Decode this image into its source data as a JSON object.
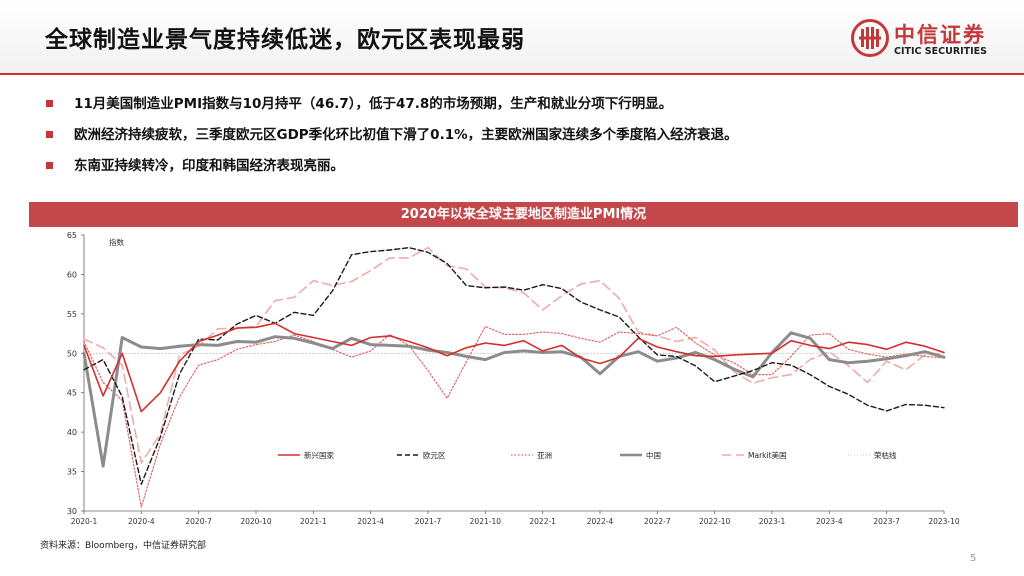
{
  "header": {
    "title": "全球制造业景气度持续低迷，欧元区表现最弱",
    "logo_cn": "中信证券",
    "logo_en": "CITIC SECURITIES"
  },
  "bullets": [
    "11月美国制造业PMI指数与10月持平（46.7），低于47.8的市场预期，生产和就业分项下行明显。",
    "欧洲经济持续疲软，三季度欧元区GDP季化环比初值下滑了0.1%，主要欧洲国家连续多个季度陷入经济衰退。",
    "东南亚持续转冷，印度和韩国经济表现亮丽。"
  ],
  "chart_banner": "2020年以来全球主要地区制造业PMI情况",
  "source": "资料来源：Bloomberg，中信证券研究部",
  "page_number": "5",
  "colors": {
    "brand_red": "#c4383a",
    "banner_red": "#c4484a",
    "emerging": "#d32f2f",
    "eurozone": "#1a1a1a",
    "asia": "#e06666",
    "china": "#8c8c8c",
    "us": "#f2aaaa",
    "boomline": "#bbbbbb"
  },
  "chart_data": {
    "type": "line",
    "title": "2020年以来全球主要地区制造业PMI情况",
    "ylabel": "指数",
    "ylim": [
      30,
      65
    ],
    "yticks": [
      30,
      35,
      40,
      45,
      50,
      55,
      60,
      65
    ],
    "x_range": [
      0,
      45
    ],
    "xticks": [
      {
        "i": 0,
        "label": "2020-1"
      },
      {
        "i": 3,
        "label": "2020-4"
      },
      {
        "i": 6,
        "label": "2020-7"
      },
      {
        "i": 9,
        "label": "2020-10"
      },
      {
        "i": 12,
        "label": "2021-1"
      },
      {
        "i": 15,
        "label": "2021-4"
      },
      {
        "i": 18,
        "label": "2021-7"
      },
      {
        "i": 21,
        "label": "2021-10"
      },
      {
        "i": 24,
        "label": "2022-1"
      },
      {
        "i": 27,
        "label": "2022-4"
      },
      {
        "i": 30,
        "label": "2022-7"
      },
      {
        "i": 33,
        "label": "2022-10"
      },
      {
        "i": 36,
        "label": "2023-1"
      },
      {
        "i": 39,
        "label": "2023-4"
      },
      {
        "i": 42,
        "label": "2023-7"
      },
      {
        "i": 45,
        "label": "2023-10"
      }
    ],
    "grid": false,
    "legend_position": "bottom",
    "series": [
      {
        "name": "新兴国家",
        "key": "emerging",
        "style": "solid",
        "width": 1.6,
        "values": [
          51,
          44.6,
          50,
          42.6,
          45,
          49,
          51.5,
          52.3,
          53.2,
          53.3,
          53.8,
          52.5,
          52,
          51.5,
          51,
          52,
          52.2,
          51.5,
          50.7,
          49.7,
          50.7,
          51.3,
          51,
          51.6,
          50.3,
          51,
          49.4,
          48.7,
          49.5,
          51.9,
          50.8,
          50.2,
          49.7,
          49.6,
          49.8,
          49.9,
          50,
          51.6,
          51,
          50.6,
          51.4,
          51.1,
          50.5,
          51.4,
          50.9,
          50.1
        ]
      },
      {
        "name": "欧元区",
        "key": "eurozone",
        "style": "dash",
        "width": 1.4,
        "values": [
          47.9,
          49.2,
          44.5,
          33.4,
          39.4,
          47.4,
          51.8,
          51.7,
          53.7,
          54.8,
          53.8,
          55.2,
          54.8,
          57.9,
          62.5,
          62.9,
          63.1,
          63.4,
          62.8,
          61.4,
          58.6,
          58.3,
          58.4,
          58,
          58.7,
          58.2,
          56.5,
          55.5,
          54.6,
          52.1,
          49.8,
          49.6,
          48.4,
          46.4,
          47.1,
          47.8,
          48.8,
          48.5,
          47.3,
          45.8,
          44.8,
          43.4,
          42.7,
          43.5,
          43.4,
          43.1
        ]
      },
      {
        "name": "亚洲",
        "key": "asia",
        "style": "dot",
        "width": 1.2,
        "values": [
          51.5,
          46.3,
          44,
          30.5,
          38.5,
          44.5,
          48.5,
          49.2,
          50.5,
          51.1,
          51.5,
          52.3,
          51.5,
          50.5,
          49.5,
          50.3,
          52.4,
          51,
          47.8,
          44.3,
          48.9,
          53.4,
          52.4,
          52.4,
          52.7,
          52.5,
          51.9,
          51.4,
          52.7,
          52.5,
          52.2,
          53.3,
          51.3,
          49.8,
          48.8,
          47.3,
          47.3,
          49.6,
          52.3,
          52.5,
          50.5,
          49.9,
          49.5,
          49.9,
          49.6,
          49.4
        ]
      },
      {
        "name": "中国",
        "key": "china",
        "style": "solid",
        "width": 3,
        "values": [
          50,
          35.7,
          52,
          50.8,
          50.6,
          50.9,
          51.1,
          51,
          51.5,
          51.4,
          52.1,
          51.9,
          51.3,
          50.6,
          51.9,
          51.1,
          51,
          50.9,
          50.4,
          50.1,
          49.6,
          49.2,
          50.1,
          50.3,
          50.1,
          50.2,
          49.5,
          47.4,
          49.6,
          50.2,
          49,
          49.4,
          50.1,
          49.2,
          48,
          47,
          50.1,
          52.6,
          51.9,
          49.2,
          48.8,
          49,
          49.3,
          49.7,
          50.2,
          49.5
        ]
      },
      {
        "name": "Markit美国",
        "key": "us",
        "style": "longdash",
        "width": 1.6,
        "values": [
          51.8,
          50.7,
          48.5,
          36.1,
          39.8,
          49.8,
          50.9,
          53.1,
          53.2,
          53.4,
          56.7,
          57.1,
          59.2,
          58.6,
          59.1,
          60.5,
          62.1,
          62.1,
          63.4,
          61.1,
          60.7,
          58.4,
          58.3,
          57.7,
          55.5,
          57.3,
          58.8,
          59.2,
          57,
          52.7,
          52.2,
          51.5,
          52,
          50.4,
          47.7,
          46.2,
          46.9,
          47.3,
          49.2,
          50.2,
          48.4,
          46.3,
          49,
          47.9,
          49.8,
          50
        ]
      },
      {
        "name": "荣枯线",
        "key": "boomline",
        "style": "thin-dot",
        "width": 0.8,
        "values": [
          50,
          50,
          50,
          50,
          50,
          50,
          50,
          50,
          50,
          50,
          50,
          50,
          50,
          50,
          50,
          50,
          50,
          50,
          50,
          50,
          50,
          50,
          50,
          50,
          50,
          50,
          50,
          50,
          50,
          50,
          50,
          50,
          50,
          50,
          50,
          50,
          50,
          50,
          50,
          50,
          50,
          50,
          50,
          50,
          50,
          50
        ]
      }
    ]
  }
}
